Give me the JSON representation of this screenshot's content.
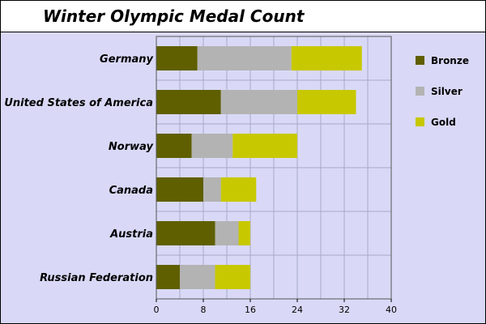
{
  "chart_data": {
    "type": "bar",
    "orientation": "horizontal",
    "stacked": true,
    "title": "Winter Olympic Medal Count",
    "xlabel": "",
    "ylabel": "",
    "categories": [
      "Germany",
      "United States of America",
      "Norway",
      "Canada",
      "Austria",
      "Russian Federation"
    ],
    "series": [
      {
        "name": "Bronze",
        "color": "#5f5f00",
        "values": [
          7,
          11,
          6,
          8,
          10,
          4
        ]
      },
      {
        "name": "Silver",
        "color": "#b3b3b3",
        "values": [
          16,
          13,
          7,
          3,
          4,
          6
        ]
      },
      {
        "name": "Gold",
        "color": "#c8c800",
        "values": [
          12,
          10,
          11,
          6,
          2,
          6
        ]
      }
    ],
    "xlim": [
      0,
      40
    ],
    "xticks": [
      "0",
      "8",
      "16",
      "24",
      "32",
      "40"
    ],
    "grid": true,
    "legend_position": "right"
  }
}
